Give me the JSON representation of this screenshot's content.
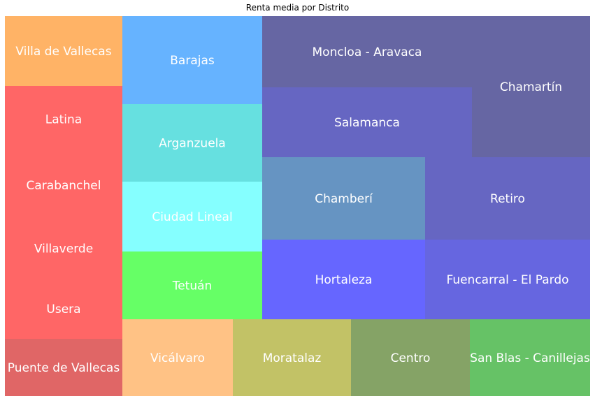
{
  "chart_data": {
    "type": "treemap",
    "title": "Renta media por Distrito",
    "tiles": [
      {
        "label": "Villa de Vallecas",
        "color": "#ffb366"
      },
      {
        "label": "Latina",
        "color": "#ff6666"
      },
      {
        "label": "Carabanchel",
        "color": "#ff6666"
      },
      {
        "label": "Villaverde",
        "color": "#ff6666"
      },
      {
        "label": "Usera",
        "color": "#ff6666"
      },
      {
        "label": "Puente de Vallecas",
        "color": "#e06666"
      },
      {
        "label": "Barajas",
        "color": "#66b3ff"
      },
      {
        "label": "Arganzuela",
        "color": "#66e0e0"
      },
      {
        "label": "Ciudad Lineal",
        "color": "#85ffff"
      },
      {
        "label": "Tetuán",
        "color": "#66ff66"
      },
      {
        "label": "Vicálvaro",
        "color": "#ffc285"
      },
      {
        "label": "Moratalaz",
        "color": "#c2c266"
      },
      {
        "label": "Centro",
        "color": "#85a366"
      },
      {
        "label": "San Blas - Canillejas",
        "color": "#66c266"
      },
      {
        "label": "Moncloa - Aravaca",
        "color": "#6666a3"
      },
      {
        "label": "Chamartín",
        "color": "#6666a3"
      },
      {
        "label": "Salamanca",
        "color": "#6666c2"
      },
      {
        "label": "Chamberí",
        "color": "#6694c2"
      },
      {
        "label": "Retiro",
        "color": "#6666c2"
      },
      {
        "label": "Hortaleza",
        "color": "#6666ff"
      },
      {
        "label": "Fuencarral - El Pardo",
        "color": "#6666e0"
      }
    ]
  }
}
